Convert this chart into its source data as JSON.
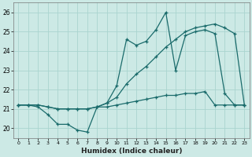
{
  "xlabel": "Humidex (Indice chaleur)",
  "background_color": "#cce9e5",
  "grid_color": "#aad4cf",
  "line_color": "#1a6b6b",
  "xlim": [
    -0.5,
    23.5
  ],
  "ylim": [
    19.5,
    26.5
  ],
  "yticks": [
    20,
    21,
    22,
    23,
    24,
    25,
    26
  ],
  "xticks": [
    0,
    1,
    2,
    3,
    4,
    5,
    6,
    7,
    8,
    9,
    10,
    11,
    12,
    13,
    14,
    15,
    16,
    17,
    18,
    19,
    20,
    21,
    22,
    23
  ],
  "line1_x": [
    0,
    1,
    2,
    3,
    4,
    5,
    6,
    7,
    8,
    9,
    10,
    11,
    12,
    13,
    14,
    15,
    16,
    17,
    18,
    19,
    20,
    21,
    22,
    23
  ],
  "line1_y": [
    21.2,
    21.2,
    21.1,
    20.7,
    20.2,
    20.2,
    19.9,
    19.8,
    21.1,
    21.3,
    22.2,
    24.6,
    24.3,
    24.5,
    25.1,
    26.0,
    23.0,
    24.8,
    25.0,
    25.1,
    24.9,
    21.8,
    21.2,
    21.2
  ],
  "line2_x": [
    0,
    1,
    2,
    3,
    4,
    5,
    6,
    7,
    8,
    9,
    10,
    11,
    12,
    13,
    14,
    15,
    16,
    17,
    18,
    19,
    20,
    21,
    22,
    23
  ],
  "line2_y": [
    21.2,
    21.2,
    21.2,
    21.1,
    21.0,
    21.0,
    21.0,
    21.0,
    21.1,
    21.3,
    21.6,
    22.3,
    22.8,
    23.2,
    23.7,
    24.2,
    24.6,
    25.0,
    25.2,
    25.3,
    25.4,
    25.2,
    24.9,
    21.2
  ],
  "line3_x": [
    0,
    1,
    2,
    3,
    4,
    5,
    6,
    7,
    8,
    9,
    10,
    11,
    12,
    13,
    14,
    15,
    16,
    17,
    18,
    19,
    20,
    21,
    22,
    23
  ],
  "line3_y": [
    21.2,
    21.2,
    21.2,
    21.1,
    21.0,
    21.0,
    21.0,
    21.0,
    21.1,
    21.1,
    21.2,
    21.3,
    21.4,
    21.5,
    21.6,
    21.7,
    21.7,
    21.8,
    21.8,
    21.9,
    21.2,
    21.2,
    21.2,
    21.2
  ]
}
